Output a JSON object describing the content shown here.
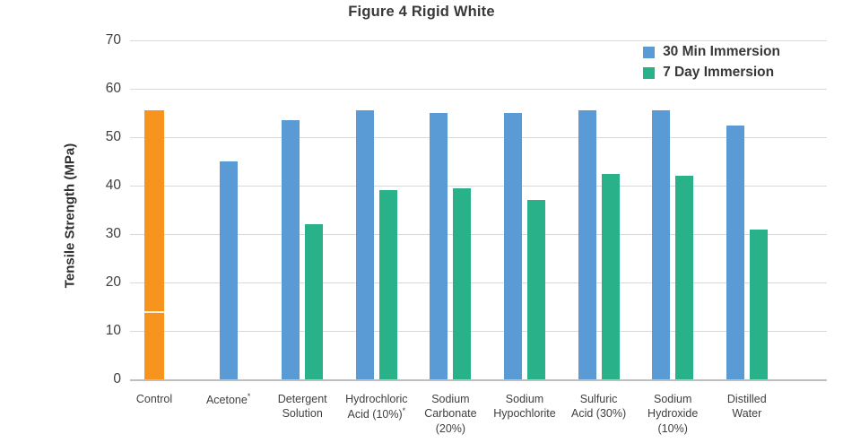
{
  "chart_data": {
    "type": "bar",
    "title": "Figure 4 Rigid White",
    "xlabel": "",
    "ylabel": "Tensile Strength (MPa)",
    "ylim": [
      0,
      70
    ],
    "y_ticks": [
      70,
      60,
      50,
      40,
      30,
      20,
      10,
      0
    ],
    "grid": true,
    "legend_position": "top-right",
    "colors": {
      "blue": "#5B9BD5",
      "green": "#29B189",
      "orange": "#F7941E"
    },
    "legend": [
      {
        "name": "30 Min Immersion",
        "color_key": "blue"
      },
      {
        "name": "7 Day Immersion",
        "color_key": "green"
      }
    ],
    "categories": [
      {
        "label_lines": [
          "Control"
        ],
        "asterisk": false,
        "bars": [
          {
            "series": "Control",
            "color_key": "orange",
            "value": 55.5,
            "seam": true
          }
        ]
      },
      {
        "label_lines": [
          "Acetone"
        ],
        "asterisk": true,
        "bars": [
          {
            "series": "30 Min Immersion",
            "color_key": "blue",
            "value": 45
          }
        ]
      },
      {
        "label_lines": [
          "Detergent",
          "Solution"
        ],
        "asterisk": false,
        "bars": [
          {
            "series": "30 Min Immersion",
            "color_key": "blue",
            "value": 53.5
          },
          {
            "series": "7 Day Immersion",
            "color_key": "green",
            "value": 32
          }
        ]
      },
      {
        "label_lines": [
          "Hydrochloric",
          "Acid (10%)"
        ],
        "asterisk": true,
        "bars": [
          {
            "series": "30 Min Immersion",
            "color_key": "blue",
            "value": 55.5
          },
          {
            "series": "7 Day Immersion",
            "color_key": "green",
            "value": 39
          }
        ]
      },
      {
        "label_lines": [
          "Sodium",
          "Carbonate",
          "(20%)"
        ],
        "asterisk": false,
        "bars": [
          {
            "series": "30 Min Immersion",
            "color_key": "blue",
            "value": 55
          },
          {
            "series": "7 Day Immersion",
            "color_key": "green",
            "value": 39.5
          }
        ]
      },
      {
        "label_lines": [
          "Sodium",
          "Hypochlorite"
        ],
        "asterisk": false,
        "bars": [
          {
            "series": "30 Min Immersion",
            "color_key": "blue",
            "value": 55
          },
          {
            "series": "7 Day Immersion",
            "color_key": "green",
            "value": 37
          }
        ]
      },
      {
        "label_lines": [
          "Sulfuric",
          "Acid (30%)"
        ],
        "asterisk": false,
        "bars": [
          {
            "series": "30 Min Immersion",
            "color_key": "blue",
            "value": 55.5
          },
          {
            "series": "7 Day Immersion",
            "color_key": "green",
            "value": 42.5
          }
        ]
      },
      {
        "label_lines": [
          "Sodium",
          "Hydroxide",
          "(10%)"
        ],
        "asterisk": false,
        "bars": [
          {
            "series": "30 Min Immersion",
            "color_key": "blue",
            "value": 55.5
          },
          {
            "series": "7 Day Immersion",
            "color_key": "green",
            "value": 42
          }
        ]
      },
      {
        "label_lines": [
          "Distilled",
          "Water"
        ],
        "asterisk": false,
        "bars": [
          {
            "series": "30 Min Immersion",
            "color_key": "blue",
            "value": 52.5
          },
          {
            "series": "7 Day Immersion",
            "color_key": "green",
            "value": 31
          }
        ]
      }
    ]
  }
}
